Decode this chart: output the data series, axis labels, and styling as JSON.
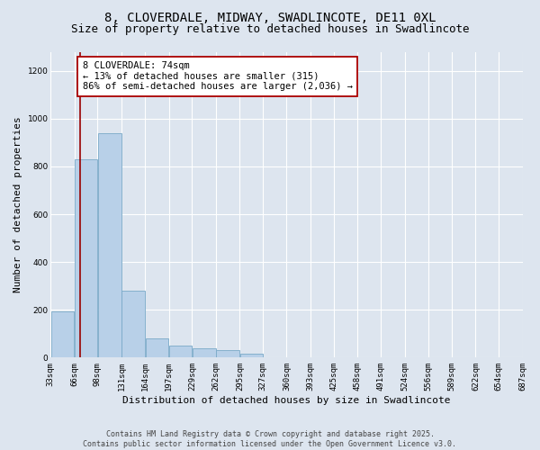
{
  "title_line1": "8, CLOVERDALE, MIDWAY, SWADLINCOTE, DE11 0XL",
  "title_line2": "Size of property relative to detached houses in Swadlincote",
  "xlabel": "Distribution of detached houses by size in Swadlincote",
  "ylabel": "Number of detached properties",
  "bar_left_edges": [
    33,
    66,
    98,
    131,
    164,
    197,
    229,
    262,
    295,
    327,
    360,
    393,
    425,
    458,
    491,
    524,
    556,
    589,
    622,
    654
  ],
  "bar_widths": [
    33,
    32,
    33,
    33,
    33,
    32,
    33,
    33,
    32,
    33,
    33,
    32,
    33,
    33,
    33,
    32,
    33,
    33,
    32,
    33
  ],
  "bar_heights": [
    195,
    830,
    940,
    280,
    80,
    50,
    40,
    30,
    15,
    0,
    0,
    0,
    0,
    0,
    0,
    0,
    0,
    0,
    0,
    0
  ],
  "bar_color": "#b8d0e8",
  "bar_edge_color": "#7aaac8",
  "property_line_x": 74,
  "property_line_color": "#990000",
  "annotation_text": "8 CLOVERDALE: 74sqm\n← 13% of detached houses are smaller (315)\n86% of semi-detached houses are larger (2,036) →",
  "annotation_box_edge": "#aa0000",
  "ylim": [
    0,
    1280
  ],
  "yticks": [
    0,
    200,
    400,
    600,
    800,
    1000,
    1200
  ],
  "xlim": [
    33,
    687
  ],
  "tick_labels": [
    "33sqm",
    "66sqm",
    "98sqm",
    "131sqm",
    "164sqm",
    "197sqm",
    "229sqm",
    "262sqm",
    "295sqm",
    "327sqm",
    "360sqm",
    "393sqm",
    "425sqm",
    "458sqm",
    "491sqm",
    "524sqm",
    "556sqm",
    "589sqm",
    "622sqm",
    "654sqm",
    "687sqm"
  ],
  "tick_positions": [
    33,
    66,
    98,
    131,
    164,
    197,
    229,
    262,
    295,
    327,
    360,
    393,
    425,
    458,
    491,
    524,
    556,
    589,
    622,
    654,
    687
  ],
  "background_color": "#dde5ef",
  "plot_bg_color": "#dde5ef",
  "footer_text": "Contains HM Land Registry data © Crown copyright and database right 2025.\nContains public sector information licensed under the Open Government Licence v3.0.",
  "title_fontsize": 10,
  "subtitle_fontsize": 9,
  "axis_label_fontsize": 8,
  "tick_fontsize": 6.5,
  "annotation_fontsize": 7.5,
  "ylabel_fontsize": 8
}
